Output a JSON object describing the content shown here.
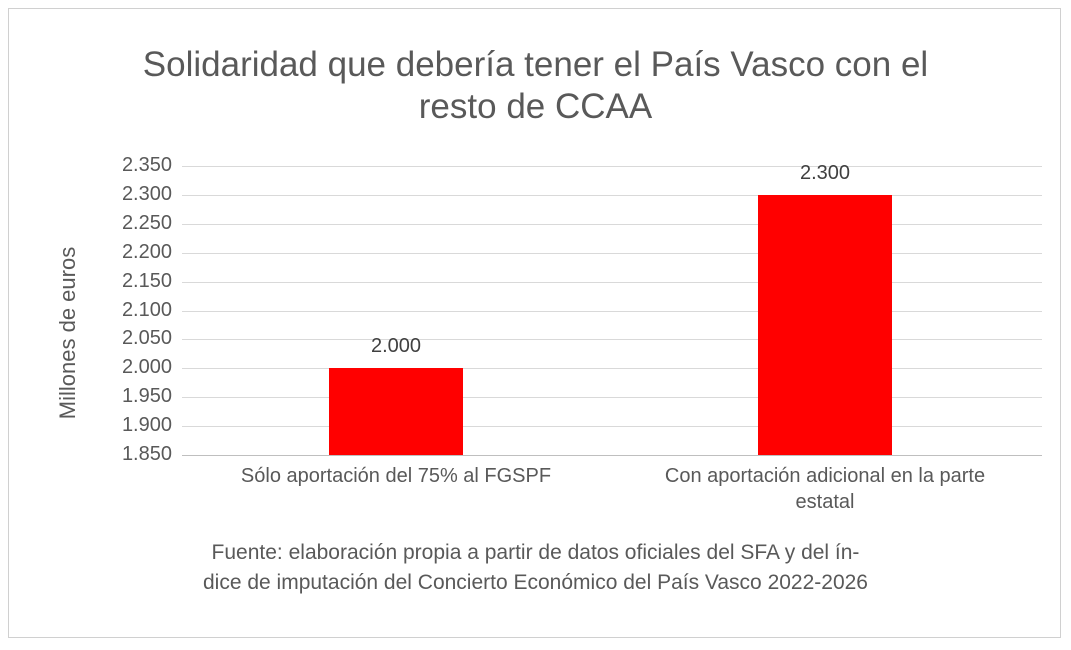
{
  "chart_data": {
    "type": "bar",
    "title": "Solidaridad que debería tener el País Vasco con el resto de CCAA",
    "title_lines": [
      "Solidaridad que debería tener el País Vasco con el",
      "resto de CCAA"
    ],
    "xlabel": "",
    "ylabel": "Millones de euros",
    "categories": [
      "Sólo aportación del 75% al FGSPF",
      "Con aportación adicional en la parte estatal"
    ],
    "category_lines": [
      [
        "Sólo aportación del 75% al FGSPF"
      ],
      [
        "Con aportación adicional en la parte",
        "estatal"
      ]
    ],
    "values": [
      2000,
      2300
    ],
    "data_labels": [
      "2.000",
      "2.300"
    ],
    "ylim": [
      1850,
      2350
    ],
    "yticks": [
      1850,
      1900,
      1950,
      2000,
      2050,
      2100,
      2150,
      2200,
      2250,
      2300,
      2350
    ],
    "ytick_labels": [
      "1.850",
      "1.900",
      "1.950",
      "2.000",
      "2.050",
      "2.100",
      "2.150",
      "2.200",
      "2.250",
      "2.300",
      "2.350"
    ],
    "grid": true,
    "legend": null,
    "bar_color": "#ff0000",
    "source_lines": [
      "Fuente: elaboración propia a partir de datos oficiales del SFA y del ín-",
      "dice de imputación del Concierto Económico del País Vasco 2022-2026"
    ]
  }
}
